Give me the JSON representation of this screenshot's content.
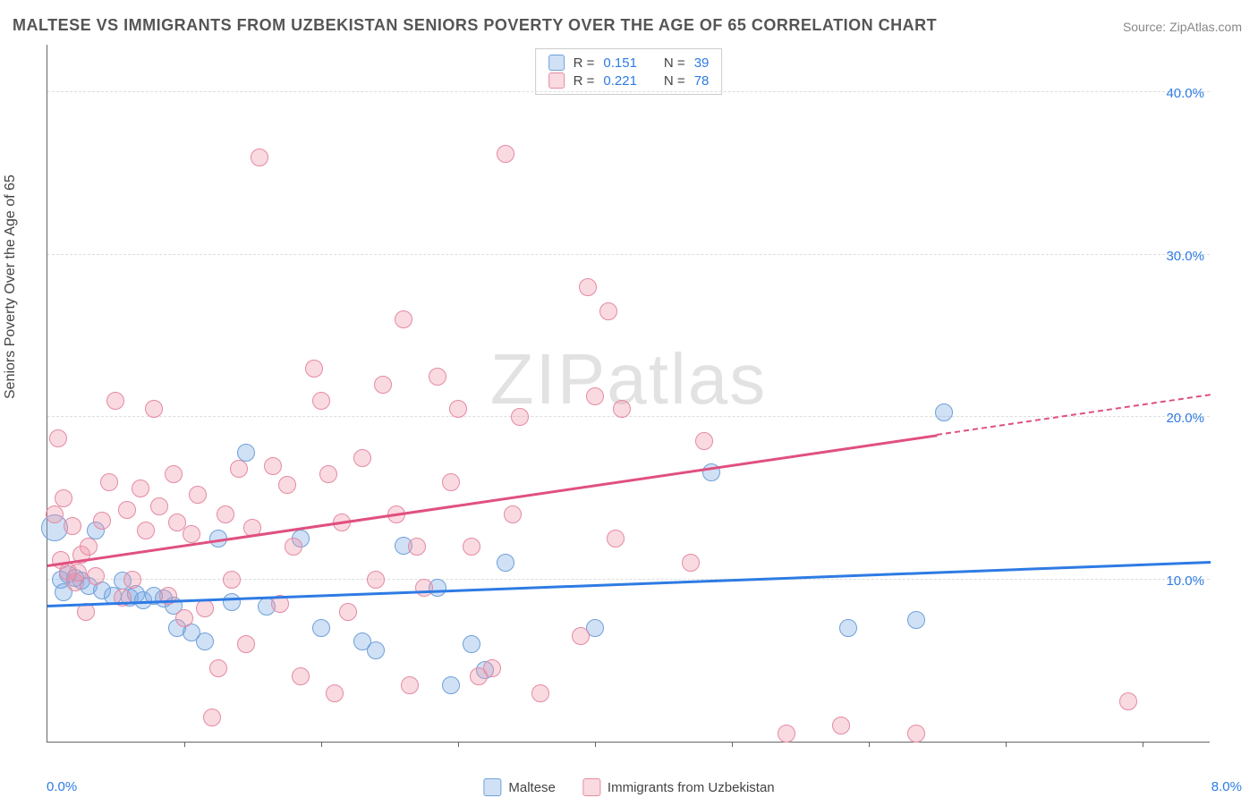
{
  "title": "MALTESE VS IMMIGRANTS FROM UZBEKISTAN SENIORS POVERTY OVER THE AGE OF 65 CORRELATION CHART",
  "source_label": "Source: ZipAtlas.com",
  "watermark": {
    "bold": "ZIP",
    "light": "atlas"
  },
  "ylabel": "Seniors Poverty Over the Age of 65",
  "chart": {
    "type": "scatter",
    "background_color": "#ffffff",
    "grid_color": "#dddddd",
    "axis_color": "#666666",
    "xlim": [
      0,
      8.5
    ],
    "ylim": [
      0,
      43
    ],
    "x_left_label": "0.0%",
    "x_right_label": "8.0%",
    "x_label_color": "#2e7be4",
    "yticks": [
      {
        "v": 10,
        "label": "10.0%"
      },
      {
        "v": 20,
        "label": "20.0%"
      },
      {
        "v": 30,
        "label": "30.0%"
      },
      {
        "v": 40,
        "label": "40.0%"
      }
    ],
    "ytick_color": "#2e7be4",
    "xtick_positions": [
      1,
      2,
      3,
      4,
      5,
      6,
      7,
      8
    ],
    "marker_radius": 10,
    "marker_radius_large": 15,
    "marker_stroke_width": 1.5,
    "series": [
      {
        "key": "maltese",
        "label": "Maltese",
        "fill": "rgba(120,170,230,0.35)",
        "stroke": "#6fa0d8",
        "r_label": "R =",
        "r_value": "0.151",
        "n_label": "N =",
        "n_value": "39",
        "trend": {
          "x1": 0.0,
          "y1": 8.3,
          "x2": 8.5,
          "y2": 11.0,
          "color": "#2e7be4",
          "dash_from_x": null
        },
        "points": [
          [
            0.05,
            13.2,
            15
          ],
          [
            0.1,
            10.0
          ],
          [
            0.15,
            10.3
          ],
          [
            0.12,
            9.2
          ],
          [
            0.2,
            10.1
          ],
          [
            0.25,
            9.9
          ],
          [
            0.3,
            9.6
          ],
          [
            0.35,
            13.0
          ],
          [
            0.4,
            9.3
          ],
          [
            0.48,
            9.0
          ],
          [
            0.55,
            9.9
          ],
          [
            0.6,
            8.9
          ],
          [
            0.65,
            9.1
          ],
          [
            0.7,
            8.7
          ],
          [
            0.78,
            9.0
          ],
          [
            0.85,
            8.8
          ],
          [
            0.92,
            8.4
          ],
          [
            0.95,
            7.0
          ],
          [
            1.05,
            6.7
          ],
          [
            1.15,
            6.2
          ],
          [
            1.25,
            12.5
          ],
          [
            1.35,
            8.6
          ],
          [
            1.45,
            17.8
          ],
          [
            1.6,
            8.3
          ],
          [
            1.85,
            12.5
          ],
          [
            2.0,
            7.0
          ],
          [
            2.3,
            6.2
          ],
          [
            2.4,
            5.6
          ],
          [
            2.6,
            12.1
          ],
          [
            2.85,
            9.5
          ],
          [
            2.95,
            3.5
          ],
          [
            3.1,
            6.0
          ],
          [
            3.2,
            4.4
          ],
          [
            3.35,
            11.0
          ],
          [
            4.0,
            7.0
          ],
          [
            4.85,
            16.6
          ],
          [
            5.85,
            7.0
          ],
          [
            6.35,
            7.5
          ],
          [
            6.55,
            20.3
          ]
        ]
      },
      {
        "key": "uzbekistan",
        "label": "Immigrants from Uzbekistan",
        "fill": "rgba(240,150,170,0.35)",
        "stroke": "#e48aa3",
        "r_label": "R =",
        "r_value": "0.221",
        "n_label": "N =",
        "n_value": "78",
        "trend": {
          "x1": 0.0,
          "y1": 10.8,
          "x2": 8.5,
          "y2": 21.3,
          "color": "#e05080",
          "dash_from_x": 6.5
        },
        "points": [
          [
            0.05,
            14.0
          ],
          [
            0.08,
            18.7
          ],
          [
            0.1,
            11.2
          ],
          [
            0.12,
            15.0
          ],
          [
            0.15,
            10.5
          ],
          [
            0.18,
            13.3
          ],
          [
            0.2,
            9.8
          ],
          [
            0.22,
            10.4
          ],
          [
            0.25,
            11.5
          ],
          [
            0.28,
            8.0
          ],
          [
            0.3,
            12.0
          ],
          [
            0.35,
            10.2
          ],
          [
            0.4,
            13.6
          ],
          [
            0.45,
            16.0
          ],
          [
            0.5,
            21.0
          ],
          [
            0.55,
            8.9
          ],
          [
            0.58,
            14.3
          ],
          [
            0.62,
            10.0
          ],
          [
            0.68,
            15.6
          ],
          [
            0.72,
            13.0
          ],
          [
            0.78,
            20.5
          ],
          [
            0.82,
            14.5
          ],
          [
            0.88,
            9.0
          ],
          [
            0.92,
            16.5
          ],
          [
            0.95,
            13.5
          ],
          [
            1.0,
            7.6
          ],
          [
            1.05,
            12.8
          ],
          [
            1.1,
            15.2
          ],
          [
            1.15,
            8.2
          ],
          [
            1.2,
            1.5
          ],
          [
            1.25,
            4.5
          ],
          [
            1.3,
            14.0
          ],
          [
            1.35,
            10.0
          ],
          [
            1.4,
            16.8
          ],
          [
            1.45,
            6.0
          ],
          [
            1.5,
            13.2
          ],
          [
            1.55,
            36.0
          ],
          [
            1.65,
            17.0
          ],
          [
            1.7,
            8.5
          ],
          [
            1.75,
            15.8
          ],
          [
            1.8,
            12.0
          ],
          [
            1.85,
            4.0
          ],
          [
            1.95,
            23.0
          ],
          [
            2.0,
            21.0
          ],
          [
            2.05,
            16.5
          ],
          [
            2.1,
            3.0
          ],
          [
            2.15,
            13.5
          ],
          [
            2.2,
            8.0
          ],
          [
            2.3,
            17.5
          ],
          [
            2.4,
            10.0
          ],
          [
            2.45,
            22.0
          ],
          [
            2.55,
            14.0
          ],
          [
            2.6,
            26.0
          ],
          [
            2.65,
            3.5
          ],
          [
            2.7,
            12.0
          ],
          [
            2.75,
            9.5
          ],
          [
            2.85,
            22.5
          ],
          [
            2.95,
            16.0
          ],
          [
            3.0,
            20.5
          ],
          [
            3.1,
            12.0
          ],
          [
            3.15,
            4.0
          ],
          [
            3.25,
            4.5
          ],
          [
            3.35,
            36.2
          ],
          [
            3.4,
            14.0
          ],
          [
            3.45,
            20.0
          ],
          [
            3.6,
            3.0
          ],
          [
            3.9,
            6.5
          ],
          [
            3.95,
            28.0
          ],
          [
            4.0,
            21.3
          ],
          [
            4.1,
            26.5
          ],
          [
            4.15,
            12.5
          ],
          [
            4.2,
            20.5
          ],
          [
            4.7,
            11.0
          ],
          [
            4.8,
            18.5
          ],
          [
            5.4,
            0.5
          ],
          [
            5.8,
            1.0
          ],
          [
            6.35,
            0.5
          ],
          [
            7.9,
            2.5
          ]
        ]
      }
    ]
  }
}
